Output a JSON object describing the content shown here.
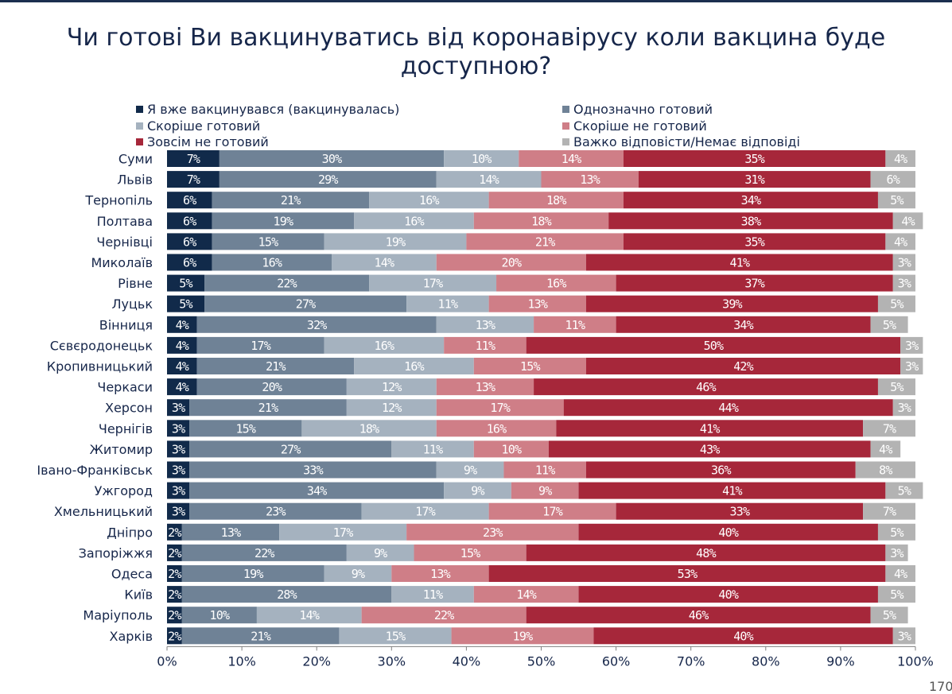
{
  "title_line1": "Чи готові Ви вакцинуватись від коронавірусу коли вакцина буде",
  "title_line2": "доступною?",
  "page_number": "170",
  "colors": {
    "vaccinated": "#112a4a",
    "definitely_ready": "#6f8296",
    "rather_ready": "#a5b2bf",
    "rather_not": "#cf7e87",
    "not_at_all": "#a6273a",
    "no_answer": "#b3b3b3",
    "title": "#16264a"
  },
  "chart_data": {
    "type": "bar",
    "orientation": "horizontal",
    "stacked": true,
    "normalized_percent": true,
    "title": "Чи готові Ви вакцинуватись від коронавірусу коли вакцина буде доступною?",
    "xlabel": "",
    "ylabel": "",
    "xlim": [
      0,
      100
    ],
    "x_ticks": [
      "0%",
      "10%",
      "20%",
      "30%",
      "40%",
      "50%",
      "60%",
      "70%",
      "80%",
      "90%",
      "100%"
    ],
    "grid": false,
    "legend_position": "top",
    "categories": [
      "Суми",
      "Львів",
      "Тернопіль",
      "Полтава",
      "Чернівці",
      "Миколаїв",
      "Рівне",
      "Луцьк",
      "Вінниця",
      "Сєвєродонецьк",
      "Кропивницький",
      "Черкаси",
      "Херсон",
      "Чернігів",
      "Житомир",
      "Івано-Франківськ",
      "Ужгород",
      "Хмельницький",
      "Дніпро",
      "Запоріжжя",
      "Одеса",
      "Київ",
      "Маріуполь",
      "Харків"
    ],
    "series": [
      {
        "name": "Я вже вакцинувався (вакцинувалась)",
        "color_key": "vaccinated",
        "label_color": "#ffffff",
        "values": [
          7,
          7,
          6,
          6,
          6,
          6,
          5,
          5,
          4,
          4,
          4,
          4,
          3,
          3,
          3,
          3,
          3,
          3,
          2,
          2,
          2,
          2,
          2,
          2
        ],
        "labels": [
          "7%",
          "7%",
          "6%",
          "6%",
          "6%",
          "6%",
          "5%",
          "5%",
          "4%",
          "4%",
          "4%",
          "4%",
          "3%",
          "3%",
          "3%",
          "3%",
          "3%",
          "3%",
          "2%",
          "2%",
          "2%",
          "2%",
          "2%",
          "2%"
        ]
      },
      {
        "name": "Однозначно готовий",
        "color_key": "definitely_ready",
        "label_color": "#ffffff",
        "values": [
          30,
          29,
          21,
          19,
          15,
          16,
          22,
          27,
          32,
          17,
          21,
          20,
          21,
          15,
          27,
          33,
          34,
          23,
          13,
          22,
          19,
          28,
          10,
          21
        ],
        "labels": [
          "30%",
          "29%",
          "21%",
          "19%",
          "15%",
          "16%",
          "22%",
          "27%",
          "32%",
          "17%",
          "21%",
          "20%",
          "21%",
          "15%",
          "27%",
          "33%",
          "34%",
          "23%",
          "13%",
          "22%",
          "19%",
          "28%",
          "10%",
          "21%"
        ]
      },
      {
        "name": "Скоріше готовий",
        "color_key": "rather_ready",
        "label_color": "#ffffff",
        "values": [
          10,
          14,
          16,
          16,
          19,
          14,
          17,
          11,
          13,
          16,
          16,
          12,
          12,
          18,
          11,
          9,
          9,
          17,
          17,
          9,
          9,
          11,
          14,
          15
        ],
        "labels": [
          "10%",
          "14%",
          "16%",
          "16%",
          "19%",
          "14%",
          "17%",
          "11%",
          "13%",
          "16%",
          "16%",
          "12%",
          "12%",
          "18%",
          "11%",
          "9%",
          "9%",
          "17%",
          "17%",
          "9%",
          "9%",
          "11%",
          "14%",
          "15%"
        ]
      },
      {
        "name": "Скоріше не готовий",
        "color_key": "rather_not",
        "label_color": "#ffffff",
        "values": [
          14,
          13,
          18,
          18,
          21,
          20,
          16,
          13,
          11,
          11,
          15,
          13,
          17,
          16,
          10,
          11,
          9,
          17,
          23,
          15,
          13,
          14,
          22,
          19
        ],
        "labels": [
          "14%",
          "13%",
          "18%",
          "18%",
          "21%",
          "20%",
          "16%",
          "13%",
          "11%",
          "11%",
          "15%",
          "13%",
          "17%",
          "16%",
          "10%",
          "11%",
          "9%",
          "17%",
          "23%",
          "15%",
          "13%",
          "14%",
          "22%",
          "19%"
        ]
      },
      {
        "name": "Зовсім не готовий",
        "color_key": "not_at_all",
        "label_color": "#ffffff",
        "values": [
          35,
          31,
          34,
          38,
          35,
          41,
          37,
          39,
          34,
          50,
          42,
          46,
          44,
          41,
          43,
          36,
          41,
          33,
          40,
          48,
          53,
          40,
          46,
          40
        ],
        "labels": [
          "35%",
          "31%",
          "34%",
          "38%",
          "35%",
          "41%",
          "37%",
          "39%",
          "34%",
          "50%",
          "42%",
          "46%",
          "44%",
          "41%",
          "43%",
          "36%",
          "41%",
          "33%",
          "40%",
          "48%",
          "53%",
          "40%",
          "46%",
          "40%"
        ]
      },
      {
        "name": "Важко відповісти/Немає відповіді",
        "color_key": "no_answer",
        "label_color": "#ffffff",
        "values": [
          4,
          6,
          5,
          4,
          4,
          3,
          3,
          5,
          5,
          3,
          3,
          5,
          3,
          7,
          4,
          8,
          5,
          7,
          5,
          3,
          4,
          5,
          5,
          3
        ],
        "labels": [
          "4%",
          "6%",
          "5%",
          "4%",
          "4%",
          "3%",
          "3%",
          "5%",
          "5%",
          "3%",
          "3%",
          "5%",
          "3%",
          "7%",
          "4%",
          "8%",
          "5%",
          "7%",
          "5%",
          "3%",
          "4%",
          "5%",
          "5%",
          "3%"
        ]
      }
    ]
  }
}
